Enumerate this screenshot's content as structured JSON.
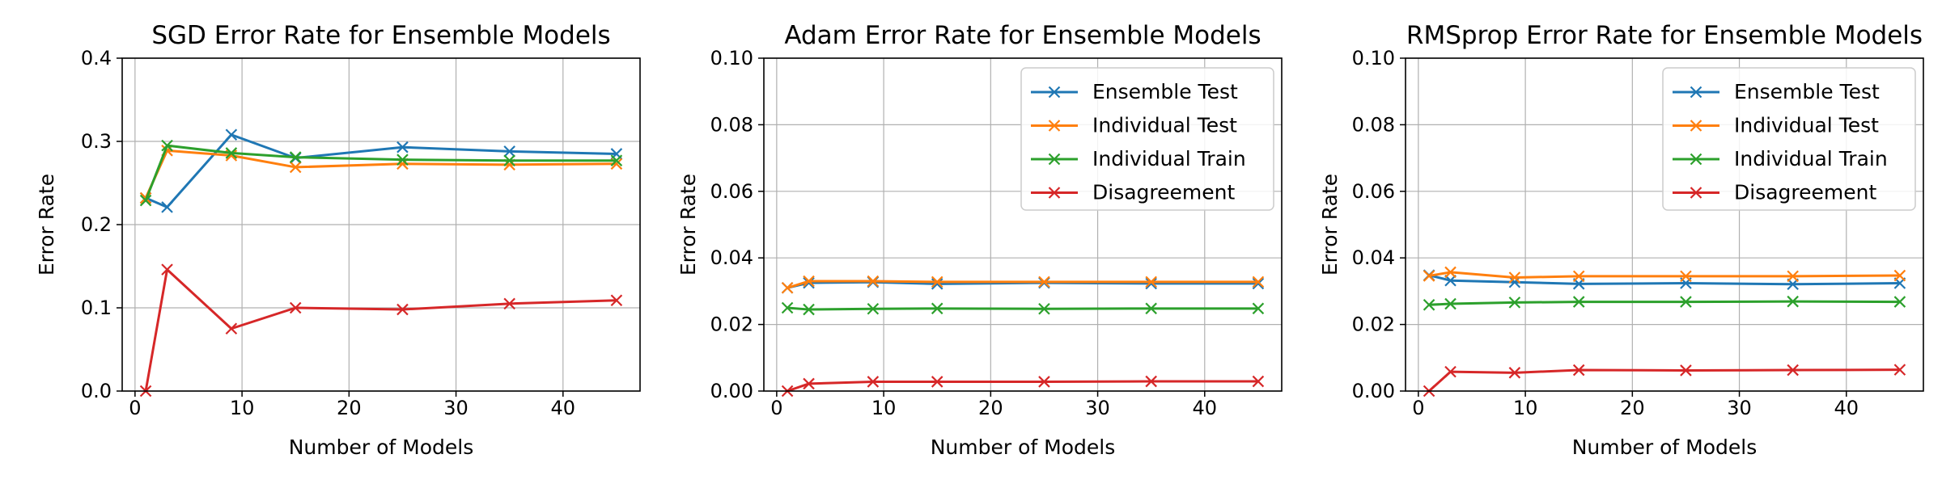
{
  "colors": {
    "ensemble_test": "#1f77b4",
    "individual_test": "#ff7f0e",
    "individual_train": "#2ca02c",
    "disagreement": "#d62728",
    "grid": "#b0b0b0"
  },
  "chart_data": [
    {
      "type": "line",
      "title": "SGD Error Rate for Ensemble Models",
      "xlabel": "Number of Models",
      "ylabel": "Error Rate",
      "xlim": [
        -1.2,
        47.2
      ],
      "ylim": [
        0,
        0.4
      ],
      "xticks": [
        0,
        10,
        20,
        30,
        40
      ],
      "xtick_labels": [
        "0",
        "10",
        "20",
        "30",
        "40"
      ],
      "yticks": [
        0,
        0.1,
        0.2,
        0.3,
        0.4
      ],
      "ytick_labels": [
        "0.0",
        "0.1",
        "0.2",
        "0.3",
        "0.4"
      ],
      "grid": true,
      "legend": null,
      "x": [
        1,
        3,
        9,
        15,
        25,
        35,
        45
      ],
      "series": [
        {
          "key": "ensemble_test",
          "values": [
            0.232,
            0.221,
            0.308,
            0.28,
            0.293,
            0.288,
            0.285
          ]
        },
        {
          "key": "individual_test",
          "values": [
            0.232,
            0.289,
            0.283,
            0.269,
            0.273,
            0.272,
            0.273
          ]
        },
        {
          "key": "individual_train",
          "values": [
            0.229,
            0.295,
            0.286,
            0.281,
            0.278,
            0.277,
            0.277
          ]
        },
        {
          "key": "disagreement",
          "values": [
            0.0,
            0.146,
            0.075,
            0.1,
            0.098,
            0.105,
            0.109
          ]
        }
      ]
    },
    {
      "type": "line",
      "title": "Adam Error Rate for Ensemble Models",
      "xlabel": "Number of Models",
      "ylabel": "Error Rate",
      "xlim": [
        -1.2,
        47.2
      ],
      "ylim": [
        0,
        0.1
      ],
      "xticks": [
        0,
        10,
        20,
        30,
        40
      ],
      "xtick_labels": [
        "0",
        "10",
        "20",
        "30",
        "40"
      ],
      "yticks": [
        0,
        0.02,
        0.04,
        0.06,
        0.08,
        0.1
      ],
      "ytick_labels": [
        "0.00",
        "0.02",
        "0.04",
        "0.06",
        "0.08",
        "0.10"
      ],
      "grid": true,
      "legend": "top-right",
      "x": [
        1,
        3,
        9,
        15,
        25,
        35,
        45
      ],
      "series": [
        {
          "key": "ensemble_test",
          "name": "Ensemble Test",
          "values": [
            0.031,
            0.0325,
            0.0327,
            0.0322,
            0.0325,
            0.0323,
            0.0323
          ]
        },
        {
          "key": "individual_test",
          "name": "Individual Test",
          "values": [
            0.031,
            0.033,
            0.033,
            0.0328,
            0.0328,
            0.0328,
            0.0328
          ]
        },
        {
          "key": "individual_train",
          "name": "Individual Train",
          "values": [
            0.025,
            0.0245,
            0.0247,
            0.0248,
            0.0247,
            0.0248,
            0.0248
          ]
        },
        {
          "key": "disagreement",
          "name": "Disagreement",
          "values": [
            0.0,
            0.0022,
            0.0028,
            0.0028,
            0.0028,
            0.0029,
            0.0029
          ]
        }
      ]
    },
    {
      "type": "line",
      "title": "RMSprop Error Rate for Ensemble Models",
      "xlabel": "Number of Models",
      "ylabel": "Error Rate",
      "xlim": [
        -1.2,
        47.2
      ],
      "ylim": [
        0,
        0.1
      ],
      "xticks": [
        0,
        10,
        20,
        30,
        40
      ],
      "xtick_labels": [
        "0",
        "10",
        "20",
        "30",
        "40"
      ],
      "yticks": [
        0,
        0.02,
        0.04,
        0.06,
        0.08,
        0.1
      ],
      "ytick_labels": [
        "0.00",
        "0.02",
        "0.04",
        "0.06",
        "0.08",
        "0.10"
      ],
      "grid": true,
      "legend": "top-right",
      "x": [
        1,
        3,
        9,
        15,
        25,
        35,
        45
      ],
      "series": [
        {
          "key": "ensemble_test",
          "name": "Ensemble Test",
          "values": [
            0.0348,
            0.0332,
            0.0327,
            0.0322,
            0.0324,
            0.0321,
            0.0324
          ]
        },
        {
          "key": "individual_test",
          "name": "Individual Test",
          "values": [
            0.0346,
            0.0357,
            0.0341,
            0.0345,
            0.0345,
            0.0345,
            0.0347
          ]
        },
        {
          "key": "individual_train",
          "name": "Individual Train",
          "values": [
            0.0259,
            0.0262,
            0.0266,
            0.0268,
            0.0268,
            0.0269,
            0.0268
          ]
        },
        {
          "key": "disagreement",
          "name": "Disagreement",
          "values": [
            0.0,
            0.0058,
            0.0055,
            0.0063,
            0.0062,
            0.0063,
            0.0064
          ]
        }
      ]
    }
  ]
}
